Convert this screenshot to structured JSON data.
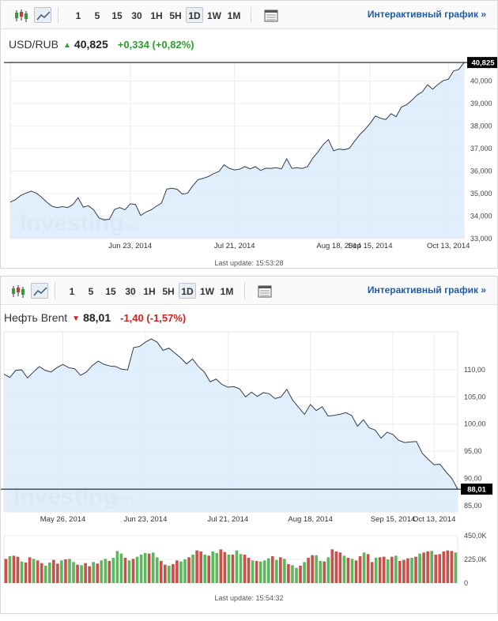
{
  "toolbar": {
    "periods": [
      "1",
      "5",
      "15",
      "30",
      "1H",
      "5H",
      "1D",
      "1W",
      "1M"
    ],
    "active_period": "1D",
    "interactive_link": "Интерактивный график »"
  },
  "charts": [
    {
      "symbol": "USD/RUB",
      "price": "40,825",
      "direction": "up",
      "change": "+0,334 (+0,82%)",
      "last_update_label": "Last update: 15:53:28",
      "price_tag": "40,825",
      "watermark": "Investing",
      "watermark_suffix": ".com",
      "fill_color": "#dcebfb",
      "line_color": "#333d4c"
    },
    {
      "symbol": "Нефть Brent",
      "price": "88,01",
      "direction": "down",
      "change": "-1,40 (-1,57%)",
      "last_update_label": "Last update: 15:54:32",
      "price_tag": "88,01",
      "watermark": "Investing",
      "watermark_suffix": ".com",
      "fill_color": "#dcebfb",
      "line_color": "#333d4c",
      "vol_up_color": "#5cb85c",
      "vol_down_color": "#c9514a"
    }
  ],
  "chart_data": [
    {
      "type": "area",
      "title": "USD/RUB",
      "xlabel": "",
      "ylabel": "",
      "x_tick_labels": [
        "Jun 23, 2014",
        "Jul 21, 2014",
        "Aug 18, 2014",
        "Sep 15, 2014",
        "Oct 13, 2014"
      ],
      "y_ticks": [
        33,
        34,
        35,
        36,
        37,
        38,
        39,
        40
      ],
      "y_tick_labels": [
        "33,000",
        "34,000",
        "35,000",
        "36,000",
        "37,000",
        "38,000",
        "39,000",
        "40,000"
      ],
      "ylim": [
        33.0,
        40.9
      ],
      "grid": true,
      "last_value": 40.825,
      "values": [
        34.62,
        34.73,
        34.92,
        35.02,
        35.11,
        35.02,
        34.84,
        34.62,
        34.44,
        34.38,
        34.42,
        34.38,
        34.51,
        34.82,
        34.4,
        34.46,
        34.28,
        33.92,
        33.83,
        33.86,
        34.3,
        34.38,
        34.28,
        34.55,
        34.52,
        34.03,
        34.18,
        34.28,
        34.44,
        34.58,
        35.2,
        35.24,
        35.19,
        34.98,
        35.02,
        35.35,
        35.62,
        35.68,
        35.76,
        35.89,
        35.98,
        36.28,
        36.12,
        36.05,
        36.09,
        36.2,
        36.1,
        36.2,
        36.03,
        36.13,
        36.12,
        36.15,
        36.1,
        36.55,
        36.12,
        36.15,
        36.12,
        36.2,
        36.58,
        36.85,
        37.18,
        37.4,
        36.9,
        36.98,
        36.95,
        37.01,
        37.32,
        37.62,
        37.85,
        38.12,
        38.45,
        38.35,
        38.29,
        38.55,
        38.42,
        38.85,
        38.95,
        39.15,
        39.38,
        39.52,
        39.84,
        39.64,
        39.85,
        40.02,
        40.08,
        40.45,
        40.52,
        40.825
      ],
      "x_tick_index": [
        23,
        43,
        63,
        69,
        84
      ]
    },
    {
      "type": "area",
      "title": "Нефть Brent",
      "xlabel": "",
      "ylabel": "",
      "x_tick_labels": [
        "May 26, 2014",
        "Jun 23, 2014",
        "Jul 21, 2014",
        "Aug 18, 2014",
        "Sep 15, 2014",
        "Oct 13, 2014"
      ],
      "y_ticks": [
        85,
        90,
        95,
        100,
        105,
        110
      ],
      "y_tick_labels": [
        "85,00",
        "90,00",
        "95,00",
        "100,00",
        "105,00",
        "110,00"
      ],
      "ylim": [
        83.8,
        117.0
      ],
      "grid": true,
      "last_value": 88.01,
      "values": [
        109.2,
        108.6,
        109.9,
        110.0,
        108.5,
        109.6,
        110.6,
        109.9,
        109.6,
        110.4,
        111.0,
        110.4,
        110.2,
        109.0,
        109.6,
        110.8,
        111.6,
        111.0,
        110.7,
        110.6,
        110.1,
        110.0,
        114.1,
        114.3,
        115.1,
        115.7,
        115.1,
        113.6,
        114.0,
        113.1,
        112.2,
        111.1,
        112.0,
        110.6,
        109.6,
        107.8,
        108.3,
        107.3,
        106.8,
        106.9,
        106.5,
        105.0,
        105.9,
        105.1,
        105.8,
        105.6,
        104.7,
        105.0,
        106.4,
        104.4,
        103.1,
        101.8,
        103.6,
        102.5,
        103.2,
        101.5,
        101.6,
        101.8,
        102.1,
        101.6,
        99.6,
        100.8,
        99.3,
        98.9,
        97.4,
        98.5,
        98.1,
        97.0,
        96.6,
        96.7,
        96.8,
        94.6,
        93.5,
        92.5,
        92.6,
        91.2,
        90.0,
        88.01
      ],
      "x_tick_index": [
        10,
        24,
        38,
        52,
        66,
        73
      ]
    },
    {
      "type": "bar",
      "title": "",
      "xlabel": "",
      "ylabel": "",
      "y_tick_labels": [
        "0",
        "225,0K",
        "450,0K"
      ],
      "ylim": [
        0,
        450000
      ],
      "values": [
        230,
        255,
        260,
        250,
        205,
        195,
        245,
        230,
        215,
        190,
        165,
        195,
        220,
        185,
        215,
        225,
        230,
        200,
        175,
        170,
        190,
        160,
        200,
        185,
        215,
        230,
        210,
        240,
        305,
        280,
        240,
        215,
        230,
        250,
        270,
        285,
        280,
        290,
        245,
        210,
        175,
        165,
        180,
        215,
        205,
        225,
        245,
        270,
        310,
        300,
        270,
        260,
        300,
        285,
        320,
        295,
        270,
        270,
        310,
        275,
        270,
        240,
        215,
        210,
        205,
        215,
        235,
        255,
        220,
        245,
        230,
        180,
        170,
        145,
        165,
        200,
        240,
        265,
        265,
        210,
        205,
        245,
        320,
        300,
        290,
        260,
        240,
        230,
        215,
        255,
        290,
        275,
        200,
        240,
        245,
        250,
        225,
        250,
        260,
        210,
        220,
        235,
        240,
        250,
        280,
        290,
        300,
        305,
        270,
        275,
        300,
        310,
        305,
        290
      ],
      "value_unit": "K",
      "up_flags": [
        0,
        1,
        0,
        0,
        1,
        0,
        0,
        1,
        0,
        0,
        1,
        1,
        0,
        0,
        1,
        0,
        1,
        1,
        0,
        1,
        0,
        0,
        1,
        0,
        1,
        1,
        0,
        1,
        1,
        1,
        0,
        1,
        0,
        1,
        1,
        1,
        0,
        1,
        1,
        0,
        0,
        1,
        0,
        0,
        1,
        1,
        0,
        1,
        0,
        0,
        1,
        0,
        1,
        1,
        0,
        0,
        1,
        0,
        1,
        1,
        0,
        0,
        1,
        0,
        1,
        1,
        1,
        0,
        1,
        0,
        1,
        0,
        1,
        1,
        0,
        1,
        0,
        0,
        1,
        1,
        0,
        1,
        0,
        0,
        0,
        1,
        0,
        1,
        0,
        0,
        1,
        0,
        0,
        1,
        0,
        0,
        1,
        0,
        1,
        0,
        0,
        0,
        1,
        0,
        1,
        0,
        0,
        1,
        0,
        0,
        0,
        0,
        0,
        1
      ]
    }
  ]
}
